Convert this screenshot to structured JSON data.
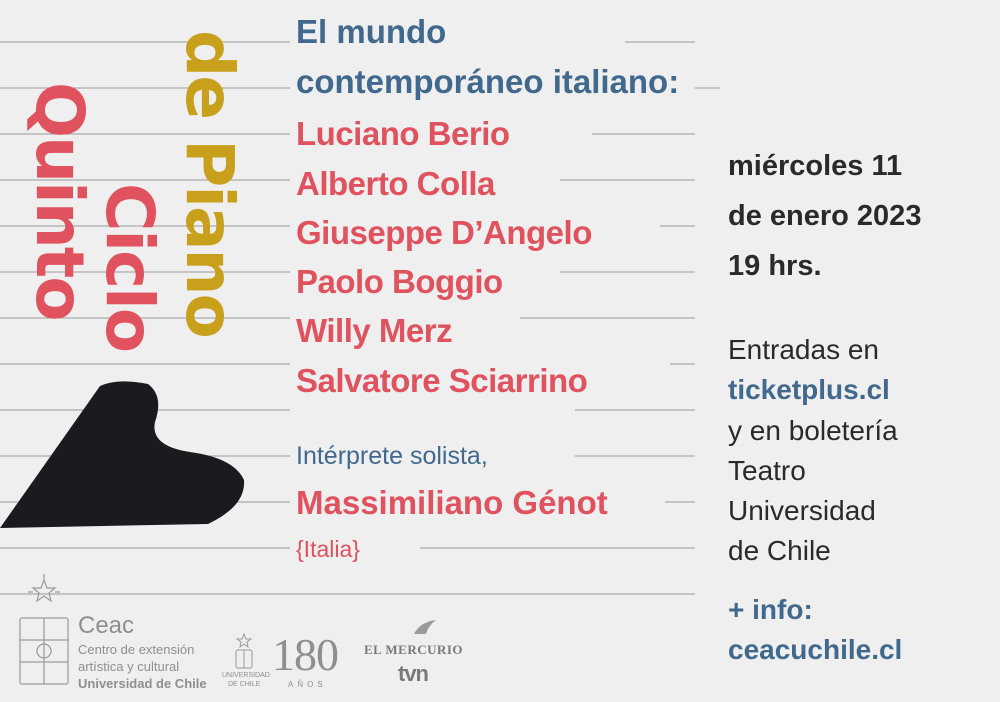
{
  "cycle": {
    "word1": "Quinto",
    "word2": "Ciclo",
    "word3": "de Piano"
  },
  "program": {
    "line1": "El mundo",
    "line2": "contemporáneo italiano:",
    "composers": [
      "Luciano Berio",
      "Alberto Colla",
      "Giuseppe D’Angelo",
      "Paolo Boggio",
      "Willy Merz",
      "Salvatore Sciarrino"
    ]
  },
  "performer": {
    "label": "Intérprete solista,",
    "name": "Massimiliano Génot",
    "country": "{Italia}"
  },
  "event": {
    "line1": "miércoles 11",
    "line2": "de enero 2023",
    "line3": "19 hrs."
  },
  "tickets": {
    "line1": "Entradas en",
    "site": "ticketplus.cl",
    "line3": "y en boletería",
    "line4": "Teatro",
    "line5": "Universidad",
    "line6": "de Chile"
  },
  "info": {
    "line1": "+ info:",
    "site": "ceacuchile.cl"
  },
  "logos": {
    "ceac_name": "Ceac",
    "ceac_line1": "Centro de extensión",
    "ceac_line2": "artística y cultural",
    "ceac_line3": "Universidad de Chile",
    "uchile_label1": "UNIVERSIDAD",
    "uchile_label2": "DE CHILE",
    "anniv_number": "180",
    "anniv_label": "AÑOS",
    "mercurio": "EL MERCURIO",
    "tvn": "tvn"
  },
  "colors": {
    "red": "#e0525e",
    "blue": "#41698d",
    "gold": "#c9a01c",
    "black": "#1b1b1f",
    "bg": "#efefef"
  }
}
